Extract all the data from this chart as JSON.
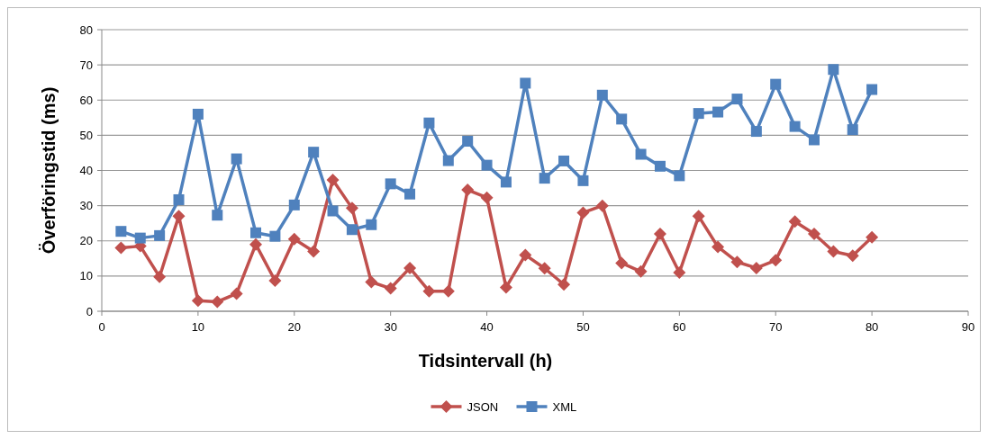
{
  "chart_data": {
    "type": "line",
    "xlabel": "Tidsintervall (h)",
    "ylabel": "Överföringstid (ms)",
    "x": [
      2,
      4,
      6,
      8,
      10,
      12,
      14,
      16,
      18,
      20,
      22,
      24,
      26,
      28,
      30,
      32,
      34,
      36,
      38,
      40,
      42,
      44,
      46,
      48,
      50,
      52,
      54,
      56,
      58,
      60,
      62,
      64,
      66,
      68,
      70,
      72,
      74,
      76,
      78,
      80
    ],
    "series": [
      {
        "name": "JSON",
        "color": "#c0504d",
        "marker": "diamond",
        "values": [
          18,
          18.5,
          9.8,
          27,
          3,
          2.7,
          5,
          19,
          8.7,
          20.5,
          17,
          37.3,
          29.3,
          8.3,
          6.5,
          12.3,
          5.7,
          5.7,
          34.5,
          32.3,
          6.8,
          16,
          12.2,
          7.6,
          28,
          30,
          13.7,
          11.3,
          22,
          11,
          27,
          18.3,
          14,
          12.3,
          14.5,
          25.5,
          22,
          17,
          15.8,
          21
        ]
      },
      {
        "name": "XML",
        "color": "#4f81bd",
        "marker": "square",
        "values": [
          22.7,
          20.8,
          21.5,
          31.7,
          56,
          27.3,
          43.3,
          22.3,
          21.3,
          30.2,
          45.2,
          28.5,
          23.2,
          24.6,
          36.2,
          33.3,
          53.5,
          42.8,
          48.3,
          41.5,
          36.7,
          64.8,
          37.8,
          42.7,
          37.1,
          61.4,
          54.6,
          44.6,
          41.2,
          38.5,
          56.2,
          56.6,
          60.3,
          51.1,
          64.5,
          52.5,
          48.7,
          68.7,
          51.6,
          63
        ]
      }
    ],
    "xlim": [
      0,
      90
    ],
    "xticks": [
      0,
      10,
      20,
      30,
      40,
      50,
      60,
      70,
      80,
      90
    ],
    "ylim": [
      0,
      80
    ],
    "yticks": [
      0,
      10,
      20,
      30,
      40,
      50,
      60,
      70,
      80
    ],
    "grid": "y",
    "legend": "bottom",
    "line_style": "solid"
  }
}
